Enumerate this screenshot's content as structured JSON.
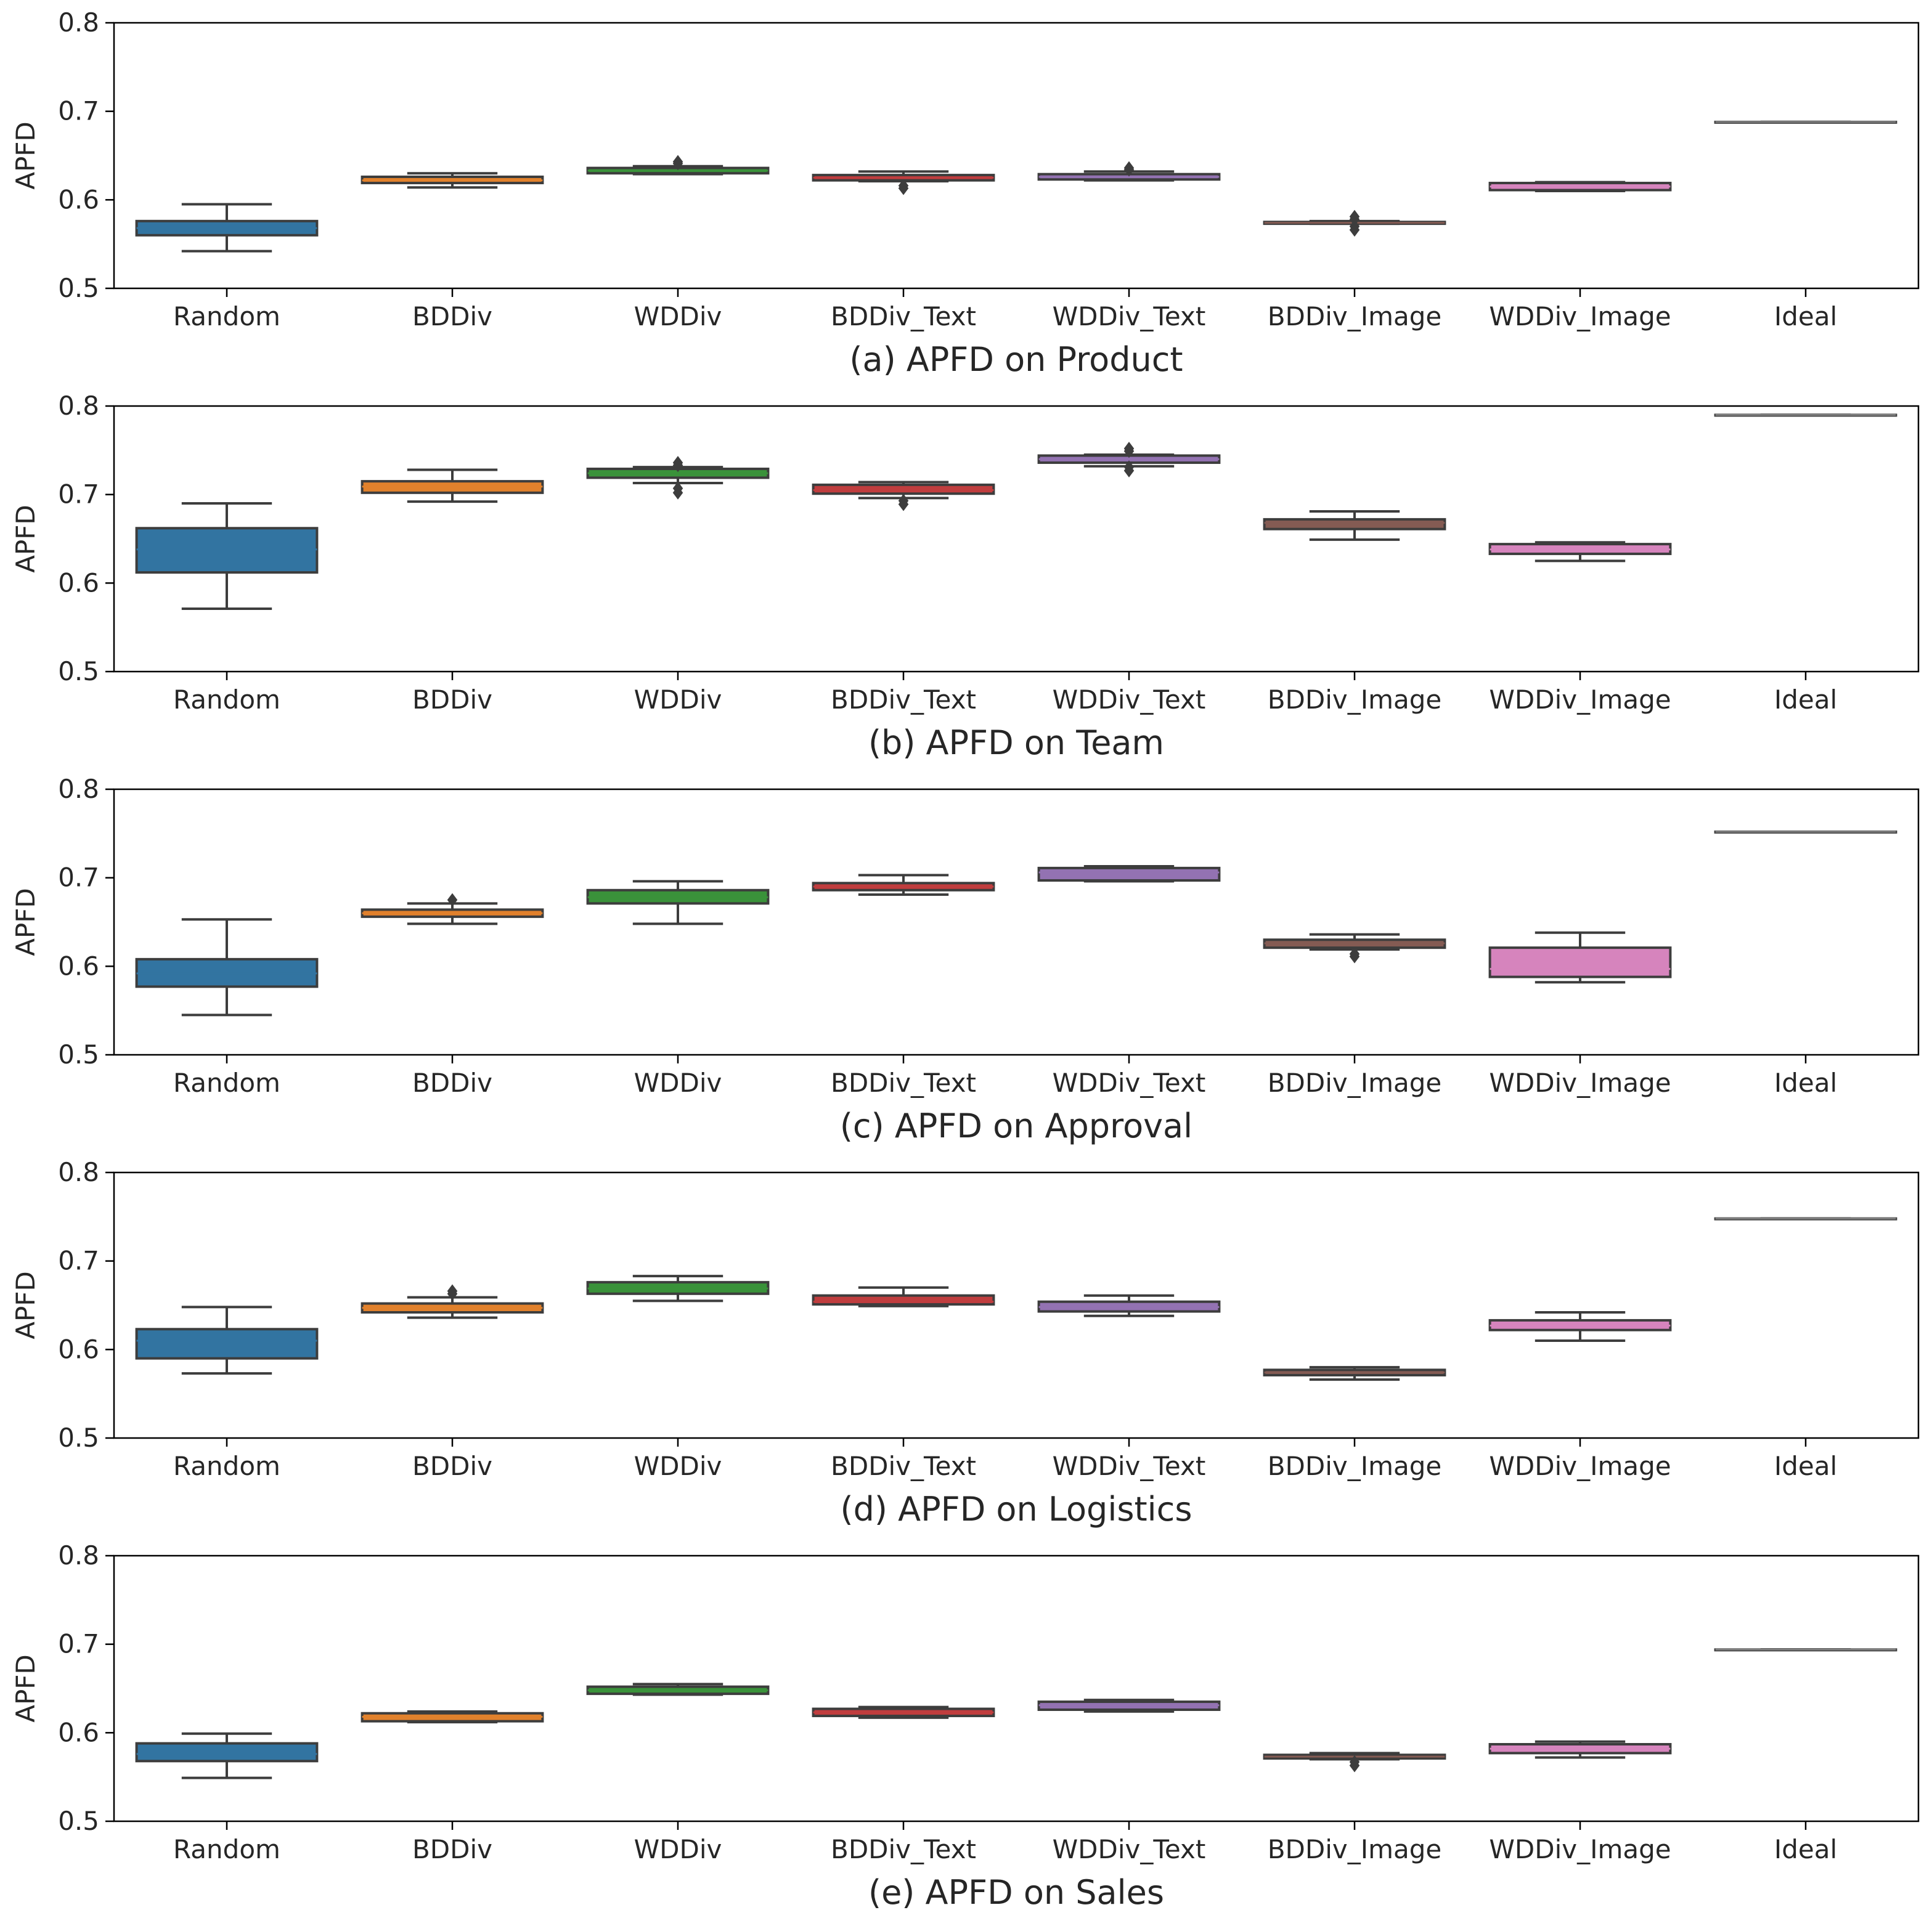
{
  "chart_data": [
    {
      "type": "box",
      "title": "(a) APFD on Product",
      "ylabel": "APFD",
      "ylim": [
        0.5,
        0.8
      ],
      "yticks": [
        "0.5",
        "0.6",
        "0.7",
        "0.8"
      ],
      "categories": [
        "Random",
        "BDDiv",
        "WDDiv",
        "BDDiv_Text",
        "WDDiv_Text",
        "BDDiv_Image",
        "WDDiv_Image",
        "Ideal"
      ],
      "boxes": [
        {
          "whislo": 0.542,
          "q1": 0.56,
          "med": 0.568,
          "q3": 0.576,
          "whishi": 0.595,
          "fliers": []
        },
        {
          "whislo": 0.614,
          "q1": 0.619,
          "med": 0.622,
          "q3": 0.626,
          "whishi": 0.63,
          "fliers": []
        },
        {
          "whislo": 0.629,
          "q1": 0.63,
          "med": 0.633,
          "q3": 0.636,
          "whishi": 0.638,
          "fliers": [
            0.641,
            0.643
          ]
        },
        {
          "whislo": 0.621,
          "q1": 0.622,
          "med": 0.625,
          "q3": 0.628,
          "whishi": 0.632,
          "fliers": [
            0.613,
            0.616
          ]
        },
        {
          "whislo": 0.622,
          "q1": 0.623,
          "med": 0.626,
          "q3": 0.629,
          "whishi": 0.632,
          "fliers": [
            0.634,
            0.636
          ]
        },
        {
          "whislo": 0.573,
          "q1": 0.573,
          "med": 0.574,
          "q3": 0.575,
          "whishi": 0.576,
          "fliers": [
            0.566,
            0.57,
            0.578,
            0.581
          ]
        },
        {
          "whislo": 0.61,
          "q1": 0.611,
          "med": 0.615,
          "q3": 0.619,
          "whishi": 0.62,
          "fliers": []
        },
        {
          "whislo": 0.688,
          "q1": 0.688,
          "med": 0.688,
          "q3": 0.688,
          "whishi": 0.688,
          "fliers": []
        }
      ]
    },
    {
      "type": "box",
      "title": "(b) APFD on Team",
      "ylabel": "APFD",
      "ylim": [
        0.5,
        0.8
      ],
      "yticks": [
        "0.5",
        "0.6",
        "0.7",
        "0.8"
      ],
      "categories": [
        "Random",
        "BDDiv",
        "WDDiv",
        "BDDiv_Text",
        "WDDiv_Text",
        "BDDiv_Image",
        "WDDiv_Image",
        "Ideal"
      ],
      "boxes": [
        {
          "whislo": 0.571,
          "q1": 0.612,
          "med": 0.638,
          "q3": 0.662,
          "whishi": 0.69,
          "fliers": []
        },
        {
          "whislo": 0.692,
          "q1": 0.702,
          "med": 0.709,
          "q3": 0.715,
          "whishi": 0.728,
          "fliers": []
        },
        {
          "whislo": 0.713,
          "q1": 0.719,
          "med": 0.724,
          "q3": 0.729,
          "whishi": 0.731,
          "fliers": [
            0.702,
            0.707,
            0.733,
            0.736
          ]
        },
        {
          "whislo": 0.696,
          "q1": 0.701,
          "med": 0.705,
          "q3": 0.711,
          "whishi": 0.714,
          "fliers": [
            0.689,
            0.693
          ]
        },
        {
          "whislo": 0.732,
          "q1": 0.736,
          "med": 0.74,
          "q3": 0.744,
          "whishi": 0.745,
          "fliers": [
            0.727,
            0.731,
            0.749,
            0.752
          ]
        },
        {
          "whislo": 0.649,
          "q1": 0.661,
          "med": 0.668,
          "q3": 0.672,
          "whishi": 0.681,
          "fliers": []
        },
        {
          "whislo": 0.625,
          "q1": 0.633,
          "med": 0.638,
          "q3": 0.644,
          "whishi": 0.646,
          "fliers": []
        },
        {
          "whislo": 0.79,
          "q1": 0.79,
          "med": 0.79,
          "q3": 0.79,
          "whishi": 0.79,
          "fliers": []
        }
      ]
    },
    {
      "type": "box",
      "title": "(c) APFD on Approval",
      "ylabel": "APFD",
      "ylim": [
        0.5,
        0.8
      ],
      "yticks": [
        "0.5",
        "0.6",
        "0.7",
        "0.8"
      ],
      "categories": [
        "Random",
        "BDDiv",
        "WDDiv",
        "BDDiv_Text",
        "WDDiv_Text",
        "BDDiv_Image",
        "WDDiv_Image",
        "Ideal"
      ],
      "boxes": [
        {
          "whislo": 0.545,
          "q1": 0.577,
          "med": 0.592,
          "q3": 0.608,
          "whishi": 0.653,
          "fliers": []
        },
        {
          "whislo": 0.648,
          "q1": 0.656,
          "med": 0.66,
          "q3": 0.664,
          "whishi": 0.671,
          "fliers": [
            0.675
          ]
        },
        {
          "whislo": 0.648,
          "q1": 0.671,
          "med": 0.678,
          "q3": 0.686,
          "whishi": 0.696,
          "fliers": []
        },
        {
          "whislo": 0.681,
          "q1": 0.686,
          "med": 0.69,
          "q3": 0.694,
          "whishi": 0.703,
          "fliers": []
        },
        {
          "whislo": 0.696,
          "q1": 0.697,
          "med": 0.706,
          "q3": 0.711,
          "whishi": 0.713,
          "fliers": []
        },
        {
          "whislo": 0.619,
          "q1": 0.621,
          "med": 0.626,
          "q3": 0.63,
          "whishi": 0.636,
          "fliers": [
            0.611,
            0.614
          ]
        },
        {
          "whislo": 0.582,
          "q1": 0.588,
          "med": 0.597,
          "q3": 0.621,
          "whishi": 0.638,
          "fliers": []
        },
        {
          "whislo": 0.752,
          "q1": 0.752,
          "med": 0.752,
          "q3": 0.752,
          "whishi": 0.752,
          "fliers": []
        }
      ]
    },
    {
      "type": "box",
      "title": "(d) APFD on Logistics",
      "ylabel": "APFD",
      "ylim": [
        0.5,
        0.8
      ],
      "yticks": [
        "0.5",
        "0.6",
        "0.7",
        "0.8"
      ],
      "categories": [
        "Random",
        "BDDiv",
        "WDDiv",
        "BDDiv_Text",
        "WDDiv_Text",
        "BDDiv_Image",
        "WDDiv_Image",
        "Ideal"
      ],
      "boxes": [
        {
          "whislo": 0.573,
          "q1": 0.59,
          "med": 0.61,
          "q3": 0.623,
          "whishi": 0.648,
          "fliers": []
        },
        {
          "whislo": 0.636,
          "q1": 0.642,
          "med": 0.647,
          "q3": 0.652,
          "whishi": 0.659,
          "fliers": [
            0.663,
            0.666
          ]
        },
        {
          "whislo": 0.655,
          "q1": 0.663,
          "med": 0.669,
          "q3": 0.676,
          "whishi": 0.683,
          "fliers": []
        },
        {
          "whislo": 0.649,
          "q1": 0.651,
          "med": 0.654,
          "q3": 0.661,
          "whishi": 0.67,
          "fliers": []
        },
        {
          "whislo": 0.638,
          "q1": 0.643,
          "med": 0.648,
          "q3": 0.654,
          "whishi": 0.661,
          "fliers": []
        },
        {
          "whislo": 0.566,
          "q1": 0.571,
          "med": 0.574,
          "q3": 0.577,
          "whishi": 0.58,
          "fliers": []
        },
        {
          "whislo": 0.61,
          "q1": 0.622,
          "med": 0.627,
          "q3": 0.633,
          "whishi": 0.642,
          "fliers": []
        },
        {
          "whislo": 0.748,
          "q1": 0.748,
          "med": 0.748,
          "q3": 0.748,
          "whishi": 0.748,
          "fliers": []
        }
      ]
    },
    {
      "type": "box",
      "title": "(e) APFD on Sales",
      "ylabel": "APFD",
      "ylim": [
        0.5,
        0.8
      ],
      "yticks": [
        "0.5",
        "0.6",
        "0.7",
        "0.8"
      ],
      "categories": [
        "Random",
        "BDDiv",
        "WDDiv",
        "BDDiv_Text",
        "WDDiv_Text",
        "BDDiv_Image",
        "WDDiv_Image",
        "Ideal"
      ],
      "boxes": [
        {
          "whislo": 0.549,
          "q1": 0.568,
          "med": 0.576,
          "q3": 0.588,
          "whishi": 0.599,
          "fliers": []
        },
        {
          "whislo": 0.612,
          "q1": 0.613,
          "med": 0.618,
          "q3": 0.622,
          "whishi": 0.624,
          "fliers": []
        },
        {
          "whislo": 0.643,
          "q1": 0.644,
          "med": 0.648,
          "q3": 0.652,
          "whishi": 0.655,
          "fliers": []
        },
        {
          "whislo": 0.617,
          "q1": 0.619,
          "med": 0.623,
          "q3": 0.627,
          "whishi": 0.629,
          "fliers": []
        },
        {
          "whislo": 0.624,
          "q1": 0.626,
          "med": 0.631,
          "q3": 0.635,
          "whishi": 0.637,
          "fliers": []
        },
        {
          "whislo": 0.57,
          "q1": 0.571,
          "med": 0.573,
          "q3": 0.575,
          "whishi": 0.577,
          "fliers": [
            0.563,
            0.567
          ]
        },
        {
          "whislo": 0.572,
          "q1": 0.577,
          "med": 0.582,
          "q3": 0.587,
          "whishi": 0.59,
          "fliers": []
        },
        {
          "whislo": 0.694,
          "q1": 0.694,
          "med": 0.694,
          "q3": 0.694,
          "whishi": 0.694,
          "fliers": []
        }
      ]
    }
  ],
  "colors": {
    "series": [
      "#3274a1",
      "#e1812c",
      "#3a923a",
      "#c03d3e",
      "#9372b2",
      "#845b53",
      "#d684bd",
      "#7f7f7f"
    ],
    "line": "#3d3d3d",
    "axis": "#000000",
    "background": "#ffffff"
  }
}
